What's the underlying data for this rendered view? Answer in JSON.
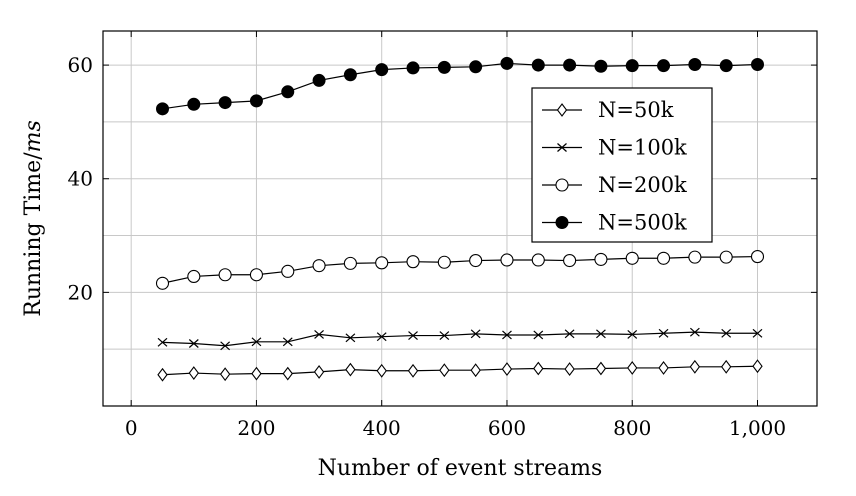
{
  "chart_data": {
    "type": "line",
    "title": "",
    "xlabel": "Number of event streams",
    "ylabel_main": "Running Time/",
    "ylabel_unit": "ms",
    "xlim": [
      -45,
      1095
    ],
    "ylim": [
      0,
      66
    ],
    "x_ticks": [
      0,
      200,
      400,
      600,
      800,
      1000
    ],
    "x_tick_labels": [
      "0",
      "200",
      "400",
      "600",
      "800",
      "1,000"
    ],
    "y_ticks": [
      20,
      40,
      60
    ],
    "y_tick_labels": [
      "20",
      "40",
      "60"
    ],
    "grid": true,
    "legend_position": "top-right",
    "x": [
      50,
      100,
      150,
      200,
      250,
      300,
      350,
      400,
      450,
      500,
      550,
      600,
      650,
      700,
      750,
      800,
      850,
      900,
      950,
      1000
    ],
    "series": [
      {
        "name": "N=50k",
        "marker": "diamond",
        "values": [
          5.5,
          5.8,
          5.6,
          5.7,
          5.7,
          6.0,
          6.4,
          6.2,
          6.2,
          6.3,
          6.3,
          6.5,
          6.6,
          6.5,
          6.6,
          6.7,
          6.7,
          6.9,
          6.9,
          7.0
        ]
      },
      {
        "name": "N=100k",
        "marker": "cross",
        "values": [
          11.2,
          11.0,
          10.6,
          11.3,
          11.3,
          12.6,
          12.0,
          12.2,
          12.4,
          12.4,
          12.7,
          12.5,
          12.5,
          12.7,
          12.7,
          12.6,
          12.8,
          13.0,
          12.8,
          12.8
        ]
      },
      {
        "name": "N=200k",
        "marker": "open-circle",
        "values": [
          21.6,
          22.8,
          23.1,
          23.1,
          23.7,
          24.7,
          25.1,
          25.2,
          25.4,
          25.3,
          25.6,
          25.7,
          25.7,
          25.6,
          25.8,
          26.0,
          26.0,
          26.2,
          26.2,
          26.3
        ]
      },
      {
        "name": "N=500k",
        "marker": "filled-circle",
        "values": [
          52.3,
          53.1,
          53.4,
          53.7,
          55.3,
          57.3,
          58.3,
          59.2,
          59.5,
          59.6,
          59.7,
          60.3,
          60.0,
          60.0,
          59.8,
          59.9,
          59.9,
          60.1,
          59.9,
          60.1
        ]
      }
    ]
  }
}
